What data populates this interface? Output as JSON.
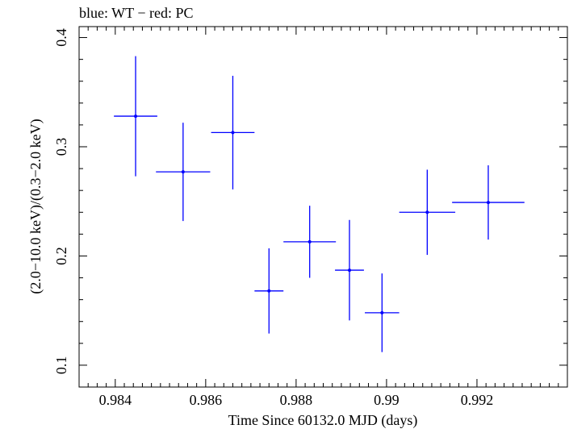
{
  "chart_data": {
    "type": "scatter",
    "title": "blue: WT − red: PC",
    "xlabel": "Time Since 60132.0 MJD (days)",
    "ylabel": "(2.0−10.0 keV)/(0.3−2.0 keV)",
    "xlim": [
      0.9832,
      0.994
    ],
    "ylim": [
      0.08,
      0.41
    ],
    "xticks": [
      0.984,
      0.986,
      0.988,
      0.99,
      0.992
    ],
    "xtick_labels": [
      "0.984",
      "0.986",
      "0.988",
      "0.99",
      "0.992"
    ],
    "yticks": [
      0.1,
      0.2,
      0.3,
      0.4
    ],
    "ytick_labels": [
      "0.1",
      "0.2",
      "0.3",
      "0.4"
    ],
    "grid": false,
    "legend": "none",
    "series_color": "#0000ff",
    "points": [
      {
        "x": 0.98445,
        "xerr": 0.00048,
        "y": 0.328,
        "ylo": 0.273,
        "yhi": 0.383
      },
      {
        "x": 0.9855,
        "xerr": 0.0006,
        "y": 0.277,
        "ylo": 0.232,
        "yhi": 0.322
      },
      {
        "x": 0.9866,
        "xerr": 0.00048,
        "y": 0.313,
        "ylo": 0.261,
        "yhi": 0.365
      },
      {
        "x": 0.9874,
        "xerr": 0.00032,
        "y": 0.168,
        "ylo": 0.129,
        "yhi": 0.207
      },
      {
        "x": 0.9883,
        "xerr": 0.00058,
        "y": 0.213,
        "ylo": 0.18,
        "yhi": 0.246
      },
      {
        "x": 0.98918,
        "xerr": 0.00032,
        "y": 0.187,
        "ylo": 0.141,
        "yhi": 0.233
      },
      {
        "x": 0.9899,
        "xerr": 0.00038,
        "y": 0.148,
        "ylo": 0.112,
        "yhi": 0.184
      },
      {
        "x": 0.9909,
        "xerr": 0.00062,
        "y": 0.24,
        "ylo": 0.201,
        "yhi": 0.279
      },
      {
        "x": 0.99225,
        "xerr": 0.0008,
        "y": 0.249,
        "ylo": 0.215,
        "yhi": 0.283
      }
    ]
  }
}
